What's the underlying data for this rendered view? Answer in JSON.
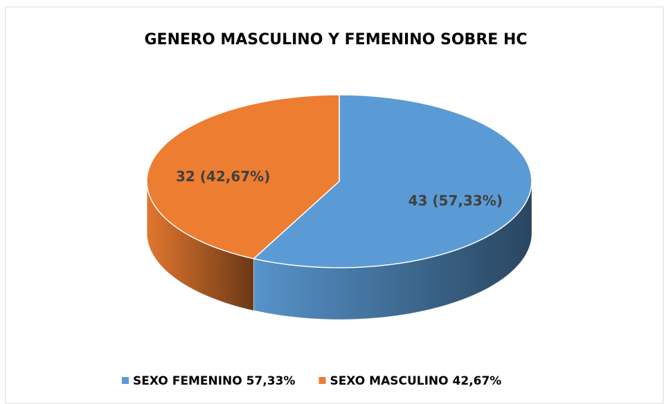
{
  "chart_data": {
    "type": "pie",
    "title": "GENERO MASCULINO Y FEMENINO SOBRE HC",
    "categories": [
      "SEXO FEMENINO 57,33%",
      "SEXO MASCULINO 42,67%"
    ],
    "values": [
      43,
      32
    ],
    "value_labels": [
      "43 (57,33%)",
      "32 (42,67%)"
    ],
    "colors": [
      "#5b9bd5",
      "#ed7d31"
    ],
    "legend": "bottom"
  }
}
